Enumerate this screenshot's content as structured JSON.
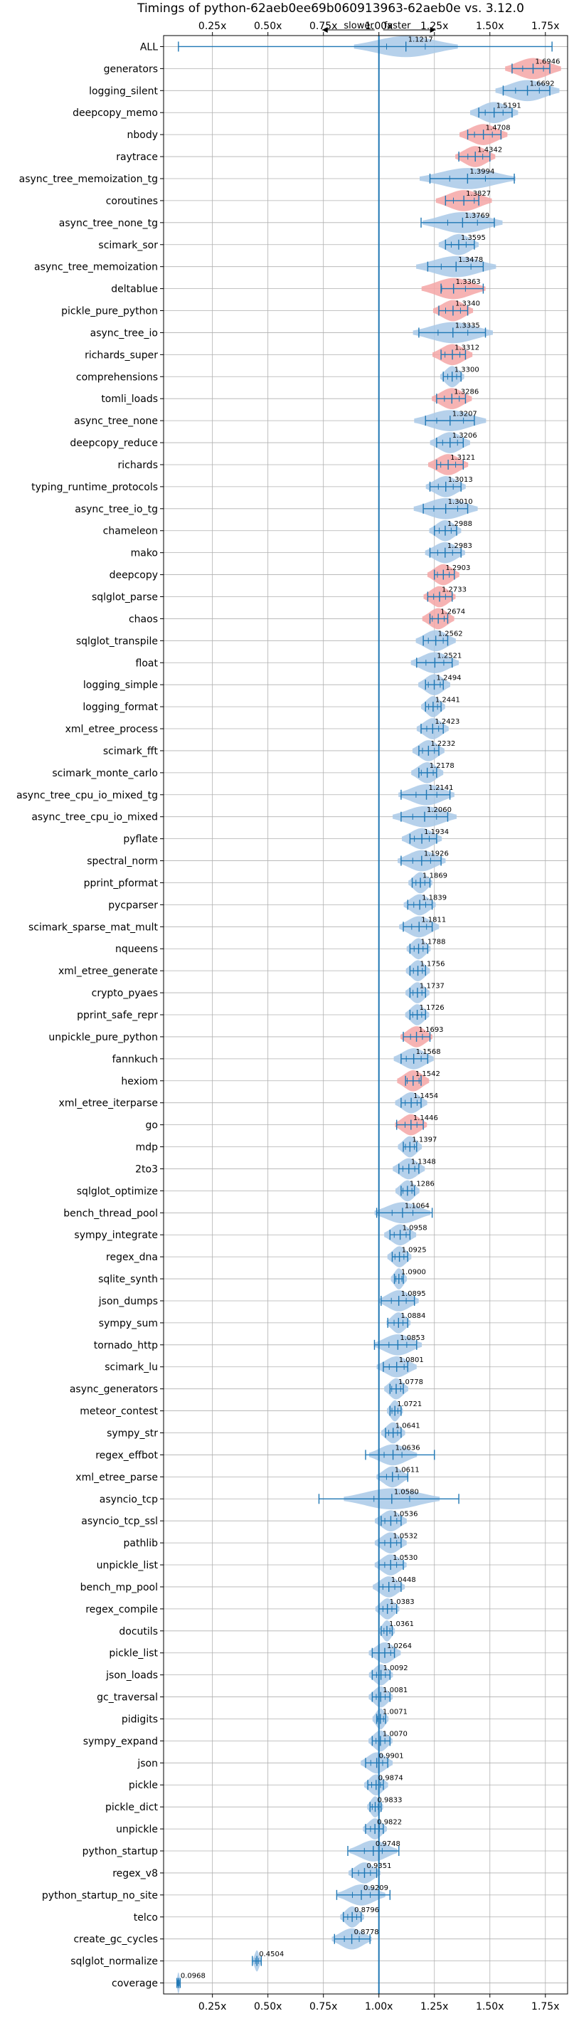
{
  "chart_data": {
    "type": "violin",
    "title": "Timings of python-62aeb0ee69b060913963-62aeb0e vs. 3.12.0",
    "direction_slower": "slower",
    "direction_faster": "faster",
    "xlim": [
      0.03,
      1.85
    ],
    "xticks": [
      0.25,
      0.5,
      0.75,
      1.0,
      1.25,
      1.5,
      1.75
    ],
    "xtick_labels": [
      "0.25x",
      "0.50x",
      "0.75x",
      "1.00x",
      "1.25x",
      "1.50x",
      "1.75x"
    ],
    "reference_x": 1.0,
    "grid": true,
    "colors": {
      "faster": "#a9c9e8",
      "slower": "#f4a6a6",
      "line": "#1f77b4"
    },
    "benchmarks": [
      {
        "name": "ALL",
        "value": "1.1217",
        "mean": 1.1217,
        "min": 0.0968,
        "max": 1.78,
        "spread": 0.13,
        "status": "faster"
      },
      {
        "name": "generators",
        "value": "1.6946",
        "mean": 1.6946,
        "min": 1.6,
        "max": 1.77,
        "spread": 0.07,
        "status": "slower"
      },
      {
        "name": "logging_silent",
        "value": "1.6692",
        "mean": 1.6692,
        "min": 1.56,
        "max": 1.77,
        "spread": 0.08,
        "status": "faster"
      },
      {
        "name": "deepcopy_memo",
        "value": "1.5191",
        "mean": 1.5191,
        "min": 1.45,
        "max": 1.6,
        "spread": 0.06,
        "status": "faster"
      },
      {
        "name": "nbody",
        "value": "1.4708",
        "mean": 1.4708,
        "min": 1.4,
        "max": 1.55,
        "spread": 0.06,
        "status": "slower"
      },
      {
        "name": "raytrace",
        "value": "1.4342",
        "mean": 1.4342,
        "min": 1.36,
        "max": 1.5,
        "spread": 0.05,
        "status": "slower"
      },
      {
        "name": "async_tree_memoization_tg",
        "value": "1.3994",
        "mean": 1.3994,
        "min": 1.23,
        "max": 1.61,
        "spread": 0.12,
        "status": "faster"
      },
      {
        "name": "coroutines",
        "value": "1.3827",
        "mean": 1.3827,
        "min": 1.3,
        "max": 1.45,
        "spread": 0.07,
        "status": "slower"
      },
      {
        "name": "async_tree_none_tg",
        "value": "1.3769",
        "mean": 1.3769,
        "min": 1.19,
        "max": 1.52,
        "spread": 0.1,
        "status": "faster"
      },
      {
        "name": "scimark_sor",
        "value": "1.3595",
        "mean": 1.3595,
        "min": 1.3,
        "max": 1.43,
        "spread": 0.05,
        "status": "faster"
      },
      {
        "name": "async_tree_memoization",
        "value": "1.3478",
        "mean": 1.3478,
        "min": 1.22,
        "max": 1.47,
        "spread": 0.1,
        "status": "faster"
      },
      {
        "name": "deltablue",
        "value": "1.3363",
        "mean": 1.3363,
        "min": 1.28,
        "max": 1.47,
        "spread": 0.08,
        "status": "slower"
      },
      {
        "name": "pickle_pure_python",
        "value": "1.3340",
        "mean": 1.334,
        "min": 1.27,
        "max": 1.4,
        "spread": 0.05,
        "status": "slower"
      },
      {
        "name": "async_tree_io",
        "value": "1.3335",
        "mean": 1.3335,
        "min": 1.18,
        "max": 1.48,
        "spread": 0.1,
        "status": "faster"
      },
      {
        "name": "richards_super",
        "value": "1.3312",
        "mean": 1.3312,
        "min": 1.28,
        "max": 1.39,
        "spread": 0.05,
        "status": "slower"
      },
      {
        "name": "comprehensions",
        "value": "1.3300",
        "mean": 1.33,
        "min": 1.29,
        "max": 1.37,
        "spread": 0.03,
        "status": "faster"
      },
      {
        "name": "tomli_loads",
        "value": "1.3286",
        "mean": 1.3286,
        "min": 1.26,
        "max": 1.39,
        "spread": 0.05,
        "status": "slower"
      },
      {
        "name": "async_tree_none",
        "value": "1.3207",
        "mean": 1.3207,
        "min": 1.21,
        "max": 1.43,
        "spread": 0.09,
        "status": "faster"
      },
      {
        "name": "deepcopy_reduce",
        "value": "1.3206",
        "mean": 1.3206,
        "min": 1.26,
        "max": 1.38,
        "spread": 0.05,
        "status": "faster"
      },
      {
        "name": "richards",
        "value": "1.3121",
        "mean": 1.3121,
        "min": 1.26,
        "max": 1.38,
        "spread": 0.05,
        "status": "slower"
      },
      {
        "name": "typing_runtime_protocols",
        "value": "1.3013",
        "mean": 1.3013,
        "min": 1.23,
        "max": 1.37,
        "spread": 0.05,
        "status": "faster"
      },
      {
        "name": "async_tree_io_tg",
        "value": "1.3010",
        "mean": 1.301,
        "min": 1.2,
        "max": 1.4,
        "spread": 0.08,
        "status": "faster"
      },
      {
        "name": "chameleon",
        "value": "1.2988",
        "mean": 1.2988,
        "min": 1.25,
        "max": 1.35,
        "spread": 0.04,
        "status": "faster"
      },
      {
        "name": "mako",
        "value": "1.2983",
        "mean": 1.2983,
        "min": 1.23,
        "max": 1.37,
        "spread": 0.05,
        "status": "faster"
      },
      {
        "name": "deepcopy",
        "value": "1.2903",
        "mean": 1.2903,
        "min": 1.25,
        "max": 1.34,
        "spread": 0.04,
        "status": "slower"
      },
      {
        "name": "sqlglot_parse",
        "value": "1.2733",
        "mean": 1.2733,
        "min": 1.22,
        "max": 1.33,
        "spread": 0.04,
        "status": "slower"
      },
      {
        "name": "chaos",
        "value": "1.2674",
        "mean": 1.2674,
        "min": 1.23,
        "max": 1.31,
        "spread": 0.04,
        "status": "slower"
      },
      {
        "name": "sqlglot_transpile",
        "value": "1.2562",
        "mean": 1.2562,
        "min": 1.2,
        "max": 1.31,
        "spread": 0.05,
        "status": "faster"
      },
      {
        "name": "float",
        "value": "1.2521",
        "mean": 1.2521,
        "min": 1.17,
        "max": 1.33,
        "spread": 0.06,
        "status": "faster"
      },
      {
        "name": "logging_simple",
        "value": "1.2494",
        "mean": 1.2494,
        "min": 1.21,
        "max": 1.29,
        "spread": 0.04,
        "status": "faster"
      },
      {
        "name": "logging_format",
        "value": "1.2441",
        "mean": 1.2441,
        "min": 1.21,
        "max": 1.28,
        "spread": 0.03,
        "status": "faster"
      },
      {
        "name": "xml_etree_process",
        "value": "1.2423",
        "mean": 1.2423,
        "min": 1.19,
        "max": 1.29,
        "spread": 0.04,
        "status": "faster"
      },
      {
        "name": "scimark_fft",
        "value": "1.2232",
        "mean": 1.2232,
        "min": 1.18,
        "max": 1.27,
        "spread": 0.04,
        "status": "faster"
      },
      {
        "name": "scimark_monte_carlo",
        "value": "1.2178",
        "mean": 1.2178,
        "min": 1.18,
        "max": 1.26,
        "spread": 0.04,
        "status": "faster"
      },
      {
        "name": "async_tree_cpu_io_mixed_tg",
        "value": "1.2141",
        "mean": 1.2141,
        "min": 1.1,
        "max": 1.32,
        "spread": 0.07,
        "status": "faster"
      },
      {
        "name": "async_tree_cpu_io_mixed",
        "value": "1.2060",
        "mean": 1.206,
        "min": 1.1,
        "max": 1.31,
        "spread": 0.08,
        "status": "faster"
      },
      {
        "name": "pyflate",
        "value": "1.1934",
        "mean": 1.1934,
        "min": 1.14,
        "max": 1.26,
        "spread": 0.05,
        "status": "faster"
      },
      {
        "name": "spectral_norm",
        "value": "1.1926",
        "mean": 1.1926,
        "min": 1.1,
        "max": 1.28,
        "spread": 0.06,
        "status": "faster"
      },
      {
        "name": "pprint_pformat",
        "value": "1.1869",
        "mean": 1.1869,
        "min": 1.15,
        "max": 1.23,
        "spread": 0.03,
        "status": "faster"
      },
      {
        "name": "pycparser",
        "value": "1.1839",
        "mean": 1.1839,
        "min": 1.13,
        "max": 1.24,
        "spread": 0.04,
        "status": "faster"
      },
      {
        "name": "scimark_sparse_mat_mult",
        "value": "1.1811",
        "mean": 1.1811,
        "min": 1.11,
        "max": 1.24,
        "spread": 0.05,
        "status": "faster"
      },
      {
        "name": "nqueens",
        "value": "1.1788",
        "mean": 1.1788,
        "min": 1.14,
        "max": 1.22,
        "spread": 0.03,
        "status": "faster"
      },
      {
        "name": "xml_etree_generate",
        "value": "1.1756",
        "mean": 1.1756,
        "min": 1.14,
        "max": 1.21,
        "spread": 0.03,
        "status": "faster"
      },
      {
        "name": "crypto_pyaes",
        "value": "1.1737",
        "mean": 1.1737,
        "min": 1.14,
        "max": 1.21,
        "spread": 0.03,
        "status": "faster"
      },
      {
        "name": "pprint_safe_repr",
        "value": "1.1726",
        "mean": 1.1726,
        "min": 1.14,
        "max": 1.21,
        "spread": 0.03,
        "status": "faster"
      },
      {
        "name": "unpickle_pure_python",
        "value": "1.1693",
        "mean": 1.1693,
        "min": 1.11,
        "max": 1.23,
        "spread": 0.04,
        "status": "slower"
      },
      {
        "name": "fannkuch",
        "value": "1.1568",
        "mean": 1.1568,
        "min": 1.1,
        "max": 1.22,
        "spread": 0.05,
        "status": "faster"
      },
      {
        "name": "hexiom",
        "value": "1.1542",
        "mean": 1.1542,
        "min": 1.12,
        "max": 1.19,
        "spread": 0.04,
        "status": "slower"
      },
      {
        "name": "xml_etree_iterparse",
        "value": "1.1454",
        "mean": 1.1454,
        "min": 1.1,
        "max": 1.19,
        "spread": 0.04,
        "status": "faster"
      },
      {
        "name": "go",
        "value": "1.1446",
        "mean": 1.1446,
        "min": 1.08,
        "max": 1.2,
        "spread": 0.04,
        "status": "slower"
      },
      {
        "name": "mdp",
        "value": "1.1397",
        "mean": 1.1397,
        "min": 1.11,
        "max": 1.17,
        "spread": 0.03,
        "status": "faster"
      },
      {
        "name": "2to3",
        "value": "1.1348",
        "mean": 1.1348,
        "min": 1.09,
        "max": 1.18,
        "spread": 0.04,
        "status": "faster"
      },
      {
        "name": "sqlglot_optimize",
        "value": "1.1286",
        "mean": 1.1286,
        "min": 1.1,
        "max": 1.16,
        "spread": 0.03,
        "status": "faster"
      },
      {
        "name": "bench_thread_pool",
        "value": "1.1064",
        "mean": 1.1064,
        "min": 0.99,
        "max": 1.24,
        "spread": 0.07,
        "status": "faster"
      },
      {
        "name": "sympy_integrate",
        "value": "1.0958",
        "mean": 1.0958,
        "min": 1.05,
        "max": 1.14,
        "spread": 0.04,
        "status": "faster"
      },
      {
        "name": "regex_dna",
        "value": "1.0925",
        "mean": 1.0925,
        "min": 1.06,
        "max": 1.13,
        "spread": 0.03,
        "status": "faster"
      },
      {
        "name": "sqlite_synth",
        "value": "1.0900",
        "mean": 1.09,
        "min": 1.07,
        "max": 1.11,
        "spread": 0.02,
        "status": "faster"
      },
      {
        "name": "json_dumps",
        "value": "1.0895",
        "mean": 1.0895,
        "min": 1.01,
        "max": 1.16,
        "spread": 0.05,
        "status": "faster"
      },
      {
        "name": "sympy_sum",
        "value": "1.0884",
        "mean": 1.0884,
        "min": 1.04,
        "max": 1.13,
        "spread": 0.03,
        "status": "faster"
      },
      {
        "name": "tornado_http",
        "value": "1.0853",
        "mean": 1.0853,
        "min": 0.98,
        "max": 1.17,
        "spread": 0.06,
        "status": "faster"
      },
      {
        "name": "scimark_lu",
        "value": "1.0801",
        "mean": 1.0801,
        "min": 1.02,
        "max": 1.13,
        "spread": 0.05,
        "status": "faster"
      },
      {
        "name": "async_generators",
        "value": "1.0778",
        "mean": 1.0778,
        "min": 1.05,
        "max": 1.11,
        "spread": 0.03,
        "status": "faster"
      },
      {
        "name": "meteor_contest",
        "value": "1.0721",
        "mean": 1.0721,
        "min": 1.05,
        "max": 1.1,
        "spread": 0.02,
        "status": "faster"
      },
      {
        "name": "sympy_str",
        "value": "1.0641",
        "mean": 1.0641,
        "min": 1.03,
        "max": 1.1,
        "spread": 0.03,
        "status": "faster"
      },
      {
        "name": "regex_effbot",
        "value": "1.0636",
        "mean": 1.0636,
        "min": 0.94,
        "max": 1.25,
        "spread": 0.06,
        "status": "faster"
      },
      {
        "name": "xml_etree_parse",
        "value": "1.0611",
        "mean": 1.0611,
        "min": 1.0,
        "max": 1.13,
        "spread": 0.04,
        "status": "faster"
      },
      {
        "name": "asyncio_tcp",
        "value": "1.0580",
        "mean": 1.058,
        "min": 0.73,
        "max": 1.36,
        "spread": 0.12,
        "status": "faster"
      },
      {
        "name": "asyncio_tcp_ssl",
        "value": "1.0536",
        "mean": 1.0536,
        "min": 1.01,
        "max": 1.1,
        "spread": 0.04,
        "status": "faster"
      },
      {
        "name": "pathlib",
        "value": "1.0532",
        "mean": 1.0532,
        "min": 1.0,
        "max": 1.1,
        "spread": 0.04,
        "status": "faster"
      },
      {
        "name": "unpickle_list",
        "value": "1.0530",
        "mean": 1.053,
        "min": 1.0,
        "max": 1.11,
        "spread": 0.04,
        "status": "faster"
      },
      {
        "name": "bench_mp_pool",
        "value": "1.0448",
        "mean": 1.0448,
        "min": 1.0,
        "max": 1.1,
        "spread": 0.04,
        "status": "faster"
      },
      {
        "name": "regex_compile",
        "value": "1.0383",
        "mean": 1.0383,
        "min": 1.0,
        "max": 1.08,
        "spread": 0.03,
        "status": "faster"
      },
      {
        "name": "docutils",
        "value": "1.0361",
        "mean": 1.0361,
        "min": 1.01,
        "max": 1.06,
        "spread": 0.02,
        "status": "faster"
      },
      {
        "name": "pickle_list",
        "value": "1.0264",
        "mean": 1.0264,
        "min": 0.97,
        "max": 1.07,
        "spread": 0.04,
        "status": "faster"
      },
      {
        "name": "json_loads",
        "value": "1.0092",
        "mean": 1.0092,
        "min": 0.97,
        "max": 1.05,
        "spread": 0.03,
        "status": "faster"
      },
      {
        "name": "gc_traversal",
        "value": "1.0081",
        "mean": 1.0081,
        "min": 0.97,
        "max": 1.05,
        "spread": 0.03,
        "status": "faster"
      },
      {
        "name": "pidigits",
        "value": "1.0071",
        "mean": 1.0071,
        "min": 0.99,
        "max": 1.03,
        "spread": 0.02,
        "status": "faster"
      },
      {
        "name": "sympy_expand",
        "value": "1.0070",
        "mean": 1.007,
        "min": 0.97,
        "max": 1.05,
        "spread": 0.03,
        "status": "faster"
      },
      {
        "name": "json",
        "value": "0.9901",
        "mean": 0.9901,
        "min": 0.94,
        "max": 1.04,
        "spread": 0.04,
        "status": "faster"
      },
      {
        "name": "pickle",
        "value": "0.9874",
        "mean": 0.9874,
        "min": 0.95,
        "max": 1.02,
        "spread": 0.03,
        "status": "faster"
      },
      {
        "name": "pickle_dict",
        "value": "0.9833",
        "mean": 0.9833,
        "min": 0.96,
        "max": 1.01,
        "spread": 0.02,
        "status": "faster"
      },
      {
        "name": "unpickle",
        "value": "0.9822",
        "mean": 0.9822,
        "min": 0.94,
        "max": 1.02,
        "spread": 0.03,
        "status": "faster"
      },
      {
        "name": "python_startup",
        "value": "0.9748",
        "mean": 0.9748,
        "min": 0.86,
        "max": 1.09,
        "spread": 0.06,
        "status": "faster"
      },
      {
        "name": "regex_v8",
        "value": "0.9351",
        "mean": 0.9351,
        "min": 0.88,
        "max": 0.99,
        "spread": 0.04,
        "status": "faster"
      },
      {
        "name": "python_startup_no_site",
        "value": "0.9209",
        "mean": 0.9209,
        "min": 0.81,
        "max": 1.05,
        "spread": 0.06,
        "status": "faster"
      },
      {
        "name": "telco",
        "value": "0.8796",
        "mean": 0.8796,
        "min": 0.84,
        "max": 0.92,
        "spread": 0.03,
        "status": "faster"
      },
      {
        "name": "create_gc_cycles",
        "value": "0.8778",
        "mean": 0.8778,
        "min": 0.8,
        "max": 0.96,
        "spread": 0.05,
        "status": "faster"
      },
      {
        "name": "sqlglot_normalize",
        "value": "0.4504",
        "mean": 0.4504,
        "min": 0.43,
        "max": 0.47,
        "spread": 0.01,
        "status": "faster"
      },
      {
        "name": "coverage",
        "value": "0.0968",
        "mean": 0.0968,
        "min": 0.09,
        "max": 0.105,
        "spread": 0.005,
        "status": "faster"
      }
    ]
  }
}
